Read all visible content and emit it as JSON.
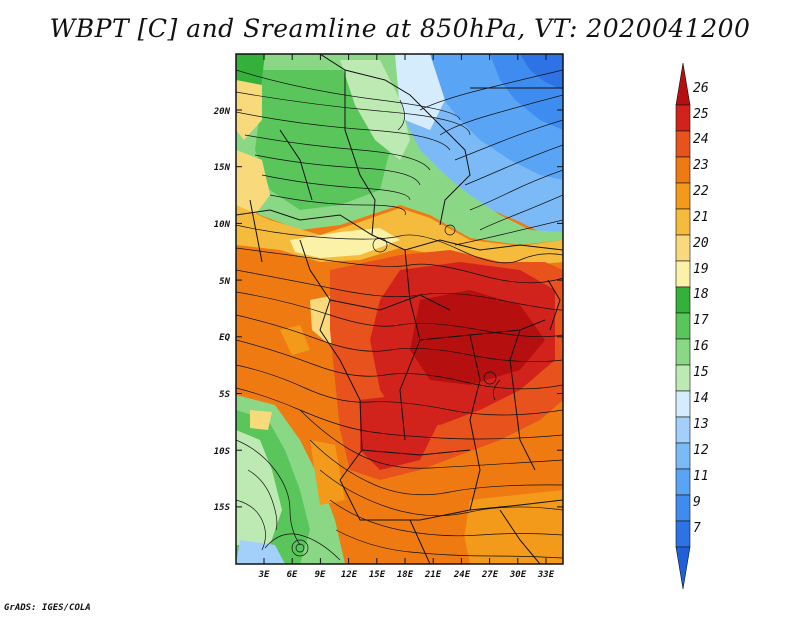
{
  "title": "WBPT [C] and Sreamline at 850hPa, VT: 2020041200",
  "footer": "GrADS: IGES/COLA",
  "map": {
    "lat_labels": [
      "20N",
      "15N",
      "10N",
      "5N",
      "EQ",
      "5S",
      "10S",
      "15S"
    ],
    "lon_labels": [
      "3E",
      "6E",
      "9E",
      "12E",
      "15E",
      "18E",
      "21E",
      "24E",
      "27E",
      "30E",
      "33E"
    ]
  },
  "colorbar": {
    "levels": [
      "7",
      "9",
      "11",
      "12",
      "13",
      "14",
      "15",
      "16",
      "17",
      "18",
      "19",
      "20",
      "21",
      "22",
      "23",
      "24",
      "25",
      "26"
    ],
    "colors": [
      "#1f5fd9",
      "#2d73e6",
      "#3f8cf0",
      "#5aa4f5",
      "#7cbaf7",
      "#a3d0fa",
      "#d4ecfb",
      "#bde9b3",
      "#8ad886",
      "#59c55a",
      "#34b13a",
      "#fbf2a8",
      "#f8da7c",
      "#f5bb3c",
      "#f39a1a",
      "#ef7a12",
      "#e7521d",
      "#d1231c",
      "#b50f0f"
    ]
  }
}
